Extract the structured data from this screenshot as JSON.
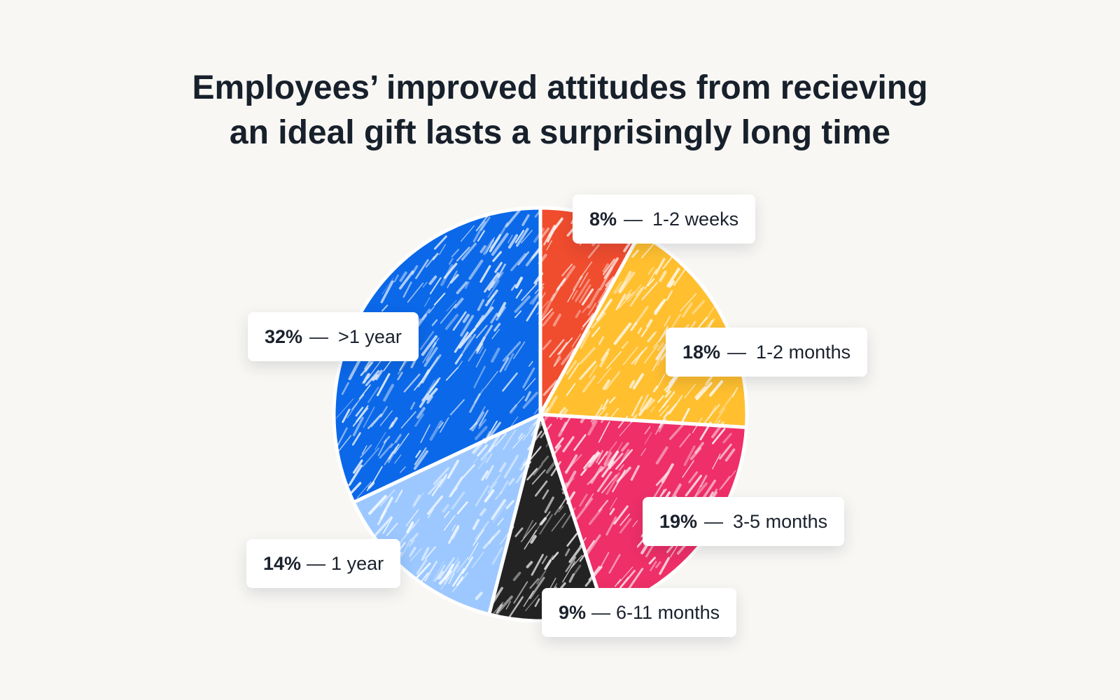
{
  "chart_data": {
    "type": "pie",
    "title": [
      "Employees’ improved attitudes from recieving",
      "an ideal gift lasts a surprisingly long time"
    ],
    "slices": [
      {
        "label": "1-2 weeks",
        "percent_label": "8%",
        "value": 8,
        "color": "#f04c2e",
        "separator": "—"
      },
      {
        "label": "1-2 months",
        "percent_label": "18%",
        "value": 18,
        "color": "#ffbf2f",
        "separator": "—"
      },
      {
        "label": "3-5 months",
        "percent_label": "19%",
        "value": 19,
        "color": "#ee2f68",
        "separator": "—"
      },
      {
        "label": "6-11 months",
        "percent_label": "9%",
        "value": 9,
        "color": "#232323",
        "separator": "—"
      },
      {
        "label": "1 year",
        "percent_label": "14%",
        "value": 14,
        "color": "#9cc8ff",
        "separator": "—"
      },
      {
        "label": ">1 year",
        "percent_label": "32%",
        "value": 32,
        "color": "#0b68e8",
        "separator": "—"
      }
    ]
  }
}
